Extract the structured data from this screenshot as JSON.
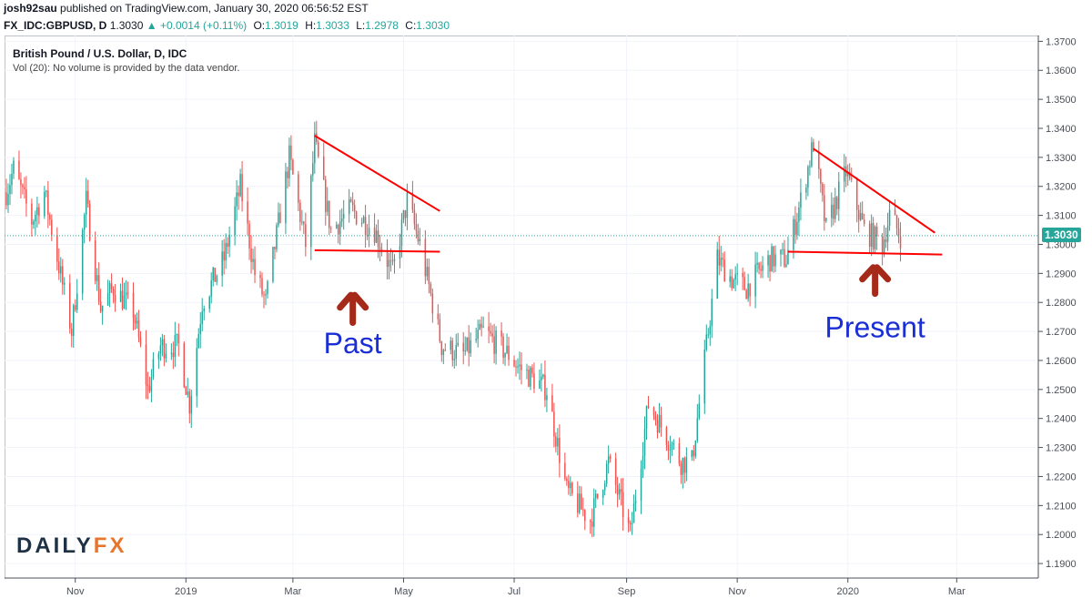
{
  "header": {
    "author": "josh92sau",
    "published": "published on TradingView.com, January 30, 2020 06:56:52 EST",
    "symbol": "FX_IDC:GBPUSD, D",
    "last": "1.3030",
    "change": "▲ +0.0014 (+0.11%)",
    "o_label": "O:",
    "o_value": "1.3019",
    "h_label": "H:",
    "h_value": "1.3033",
    "l_label": "L:",
    "l_value": "1.2978",
    "c_label": "C:",
    "c_value": "1.3030"
  },
  "legend": {
    "title": "British Pound / U.S. Dollar, D, IDC",
    "volume_note": "Vol (20): No volume is provided by the data vendor."
  },
  "logo": {
    "part1": "DAILY",
    "part2": "FX"
  },
  "colors": {
    "up": "#26a69a",
    "down": "#ef5350",
    "trend": "#ff0000",
    "arrow": "#a52a1a",
    "annotation": "#1a2ed6",
    "lastprice": "#26a69a"
  },
  "chart_data": {
    "type": "candlestick",
    "title": "British Pound / U.S. Dollar, D, IDC",
    "ylim": [
      1.185,
      1.372
    ],
    "y_ticks": [
      "1.3700",
      "1.3600",
      "1.3500",
      "1.3400",
      "1.3300",
      "1.3200",
      "1.3100",
      "1.3000",
      "1.2900",
      "1.2800",
      "1.2700",
      "1.2600",
      "1.2500",
      "1.2400",
      "1.2300",
      "1.2200",
      "1.2100",
      "1.2000",
      "1.1900"
    ],
    "x_ticks": [
      {
        "label": "Nov",
        "date": "2018-11-01"
      },
      {
        "label": "2019",
        "date": "2019-01-01"
      },
      {
        "label": "Mar",
        "date": "2019-03-01"
      },
      {
        "label": "May",
        "date": "2019-05-01"
      },
      {
        "label": "Jul",
        "date": "2019-07-01"
      },
      {
        "label": "Sep",
        "date": "2019-09-01"
      },
      {
        "label": "Nov",
        "date": "2019-11-01"
      },
      {
        "label": "2020",
        "date": "2020-01-01"
      },
      {
        "label": "Mar",
        "date": "2020-03-01"
      }
    ],
    "xlim": [
      "2018-09-23",
      "2020-04-15"
    ],
    "last_price": 1.303,
    "price_path": [
      [
        "2018-09-24",
        1.318
      ],
      [
        "2018-09-28",
        1.326
      ],
      [
        "2018-10-08",
        1.308
      ],
      [
        "2018-10-15",
        1.318
      ],
      [
        "2018-10-30",
        1.27
      ],
      [
        "2018-11-07",
        1.315
      ],
      [
        "2018-11-15",
        1.278
      ],
      [
        "2018-11-22",
        1.285
      ],
      [
        "2018-12-03",
        1.277
      ],
      [
        "2018-12-11",
        1.25
      ],
      [
        "2018-12-18",
        1.265
      ],
      [
        "2018-12-28",
        1.265
      ],
      [
        "2019-01-03",
        1.245
      ],
      [
        "2019-01-10",
        1.28
      ],
      [
        "2019-01-22",
        1.295
      ],
      [
        "2019-01-31",
        1.32
      ],
      [
        "2019-02-08",
        1.29
      ],
      [
        "2019-02-14",
        1.28
      ],
      [
        "2019-02-27",
        1.33
      ],
      [
        "2019-03-08",
        1.3
      ],
      [
        "2019-03-13",
        1.335
      ],
      [
        "2019-03-22",
        1.305
      ],
      [
        "2019-04-02",
        1.312
      ],
      [
        "2019-04-15",
        1.305
      ],
      [
        "2019-04-25",
        1.29
      ],
      [
        "2019-05-03",
        1.315
      ],
      [
        "2019-05-10",
        1.3
      ],
      [
        "2019-05-22",
        1.265
      ],
      [
        "2019-06-03",
        1.262
      ],
      [
        "2019-06-14",
        1.27
      ],
      [
        "2019-06-28",
        1.262
      ],
      [
        "2019-07-03",
        1.258
      ],
      [
        "2019-07-19",
        1.25
      ],
      [
        "2019-07-30",
        1.215
      ],
      [
        "2019-08-12",
        1.205
      ],
      [
        "2019-08-22",
        1.225
      ],
      [
        "2019-09-03",
        1.2
      ],
      [
        "2019-09-13",
        1.245
      ],
      [
        "2019-09-25",
        1.232
      ],
      [
        "2019-10-01",
        1.225
      ],
      [
        "2019-10-07",
        1.225
      ],
      [
        "2019-10-21",
        1.295
      ],
      [
        "2019-10-29",
        1.288
      ],
      [
        "2019-11-06",
        1.285
      ],
      [
        "2019-11-19",
        1.295
      ],
      [
        "2019-11-28",
        1.295
      ],
      [
        "2019-12-06",
        1.315
      ],
      [
        "2019-12-13",
        1.335
      ],
      [
        "2019-12-20",
        1.305
      ],
      [
        "2019-12-31",
        1.325
      ],
      [
        "2020-01-10",
        1.305
      ],
      [
        "2020-01-20",
        1.3
      ],
      [
        "2020-01-24",
        1.31
      ],
      [
        "2020-01-30",
        1.303
      ]
    ],
    "trendlines": [
      {
        "x1": "2019-03-13",
        "y1": 1.3375,
        "x2": "2019-05-21",
        "y2": 1.3115
      },
      {
        "x1": "2019-03-13",
        "y1": 1.298,
        "x2": "2019-05-21",
        "y2": 1.2975
      },
      {
        "x1": "2019-12-13",
        "y1": 1.333,
        "x2": "2020-02-18",
        "y2": 1.304
      },
      {
        "x1": "2019-11-29",
        "y1": 1.2975,
        "x2": "2020-02-22",
        "y2": 1.2965
      }
    ],
    "annotations": [
      {
        "text": "Past",
        "x": "2019-04-03",
        "y": 1.2625
      },
      {
        "text": "Present",
        "x": "2020-01-16",
        "y": 1.268
      }
    ],
    "arrows": [
      {
        "x": "2019-04-03",
        "y_tip": 1.2835,
        "y_base": 1.273
      },
      {
        "x": "2020-01-16",
        "y_tip": 1.293,
        "y_base": 1.283
      }
    ]
  }
}
